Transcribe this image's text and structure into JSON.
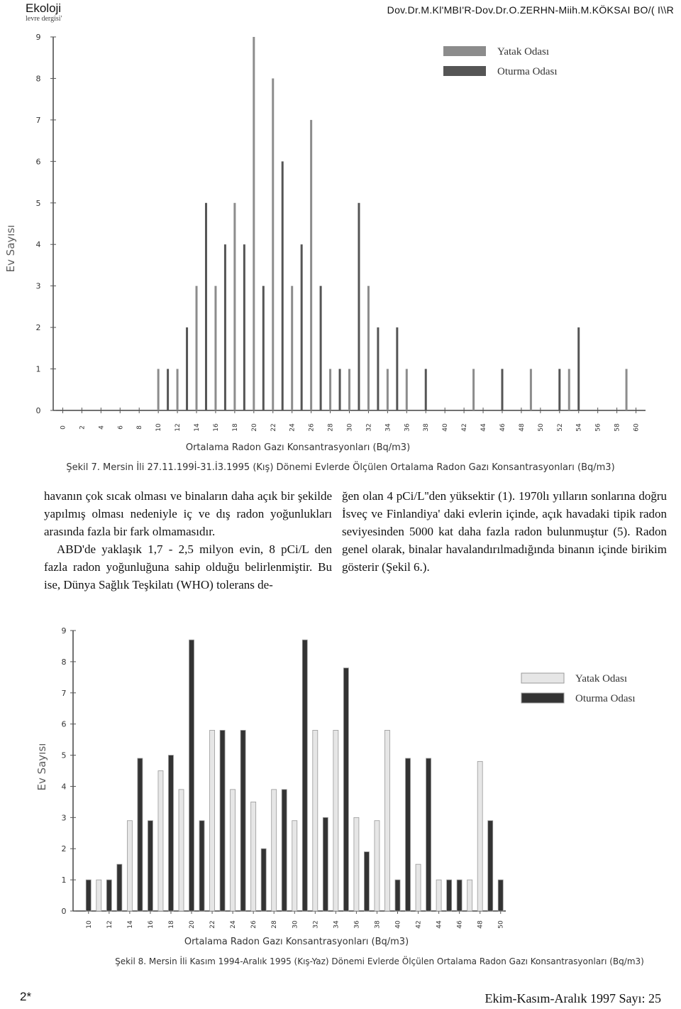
{
  "header": {
    "journal": "Ekoloji",
    "subtitle": "levre dergisi'",
    "authors": "Dov.Dr.M.Kl'MBI'R-Dov.Dr.O.ZERHN-Miih.M.KÖKSAI BO/( I\\\\R"
  },
  "chart_data": [
    {
      "type": "bar",
      "y_label": "Ev Sayısı",
      "x_label": "Ortalama Radon Gazı Konsantrasyonları (Bq/m3)",
      "caption": "Şekil 7. Mersin İli 27.11.199İ-31.İ3.1995 (Kış) Dönemi Evlerde Ölçülen Ortalama Radon Gazı Konsantrasyonları (Bq/m3)",
      "xlim": [
        -1,
        61
      ],
      "xticks": [
        0,
        2,
        4,
        6,
        8,
        10,
        12,
        14,
        16,
        18,
        20,
        22,
        24,
        26,
        28,
        30,
        32,
        34,
        36,
        38,
        40,
        42,
        44,
        46,
        48,
        50,
        52,
        54,
        56,
        58,
        60
      ],
      "ylim": [
        0,
        9
      ],
      "yticks": [
        0,
        1,
        2,
        3,
        4,
        5,
        6,
        7,
        8,
        9
      ],
      "legend": "upper right",
      "series": [
        {
          "name": "Yatak Odası",
          "color": "#8c8c8c",
          "x": [
            10,
            12,
            14,
            16,
            18,
            20,
            22,
            24,
            26,
            28,
            30,
            32,
            34,
            36,
            43,
            49,
            53,
            59
          ],
          "values": [
            1,
            1,
            3,
            3,
            5,
            9,
            8,
            3,
            7,
            1,
            1,
            3,
            1,
            1,
            1,
            1,
            1,
            1
          ]
        },
        {
          "name": "Oturma Odası",
          "color": "#555555",
          "x": [
            11,
            13,
            15,
            17,
            19,
            21,
            23,
            25,
            27,
            29,
            31,
            33,
            35,
            38,
            46,
            52,
            54
          ],
          "values": [
            1,
            2,
            5,
            4,
            4,
            3,
            6,
            4,
            3,
            1,
            5,
            2,
            2,
            1,
            1,
            1,
            2
          ]
        }
      ]
    },
    {
      "type": "bar",
      "y_label": "Ev Sayısı",
      "x_label": "Ortalama Radon Gazı Konsantrasyonları (Bq/m3)",
      "caption": "Şekil 8. Mersin İli Kasım 1994-Aralık 1995 (Kış-Yaz) Dönemi Evlerde Ölçülen Ortalama Radon Gazı Konsantrasyonları (Bq/m3)",
      "xlim": [
        8.5,
        50.5
      ],
      "xticks": [
        10,
        12,
        14,
        16,
        18,
        20,
        22,
        24,
        26,
        28,
        30,
        32,
        34,
        36,
        38,
        40,
        42,
        44,
        46,
        48,
        50
      ],
      "ylim": [
        0,
        9
      ],
      "yticks": [
        0,
        1,
        2,
        3,
        4,
        5,
        6,
        7,
        8,
        9
      ],
      "legend": "upper right",
      "series": [
        {
          "name": "Yatak Odası",
          "color": "#e6e6e6",
          "x": [
            11,
            14,
            17,
            19,
            22,
            24,
            26,
            28,
            30,
            32,
            34,
            36,
            38,
            39,
            42,
            44,
            47,
            48
          ],
          "values": [
            1,
            2.9,
            4.5,
            3.9,
            5.8,
            3.9,
            3.5,
            3.9,
            2.9,
            5.8,
            5.8,
            3,
            2.9,
            5.8,
            1.5,
            1,
            1,
            4.8
          ]
        },
        {
          "name": "Oturma Odası",
          "color": "#333333",
          "x": [
            10,
            12,
            13,
            15,
            16,
            18,
            20,
            21,
            23,
            25,
            27,
            29,
            31,
            33,
            35,
            37,
            40,
            41,
            43,
            45,
            46,
            49,
            50
          ],
          "values": [
            1,
            1,
            1.5,
            4.9,
            2.9,
            5,
            8.7,
            2.9,
            5.8,
            5.8,
            2,
            3.9,
            8.7,
            3,
            7.8,
            1.9,
            1,
            4.9,
            4.9,
            1,
            1,
            2.9,
            1
          ]
        }
      ]
    }
  ],
  "text": {
    "left": [
      "havanın çok sıcak olması ve binaların daha açık bir şekilde yapılmış olması nedeniyle iç ve dış radon yoğunlukları arasında fazla bir fark olmamasıdır.",
      "ABD'de yaklaşık 1,7 - 2,5 milyon evin, 8 pCi/L den fazla radon yoğunluğuna sahip olduğu belirlenmiştir. Bu ise, Dünya Sağlık Teşkilatı (WHO) tolerans de-"
    ],
    "right": [
      "ğen olan 4 pCi/L''den yüksektir (1). 1970lı yılların sonlarına doğru İsveç ve Finlandiya' daki evlerin içinde, açık havadaki tipik radon seviyesinden 5000 kat daha fazla radon bulunmuştur (5). Radon genel olarak, binalar havalandırılmadığında binanın içinde birikim gösterir (Şekil 6.)."
    ]
  },
  "footer": {
    "page": "2*",
    "issue": "Ekim-Kasım-Aralık 1997 Sayı: 25"
  }
}
